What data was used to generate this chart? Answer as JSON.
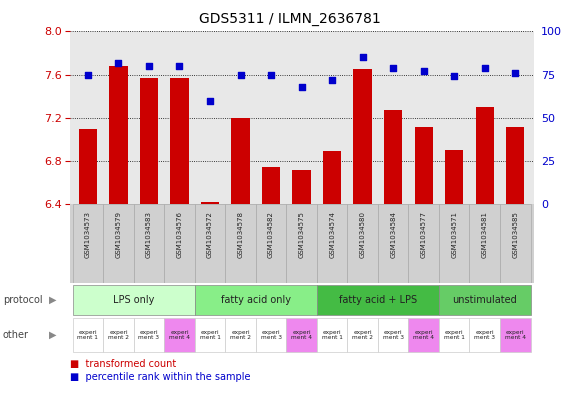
{
  "title": "GDS5311 / ILMN_2636781",
  "samples": [
    "GSM1034573",
    "GSM1034579",
    "GSM1034583",
    "GSM1034576",
    "GSM1034572",
    "GSM1034578",
    "GSM1034582",
    "GSM1034575",
    "GSM1034574",
    "GSM1034580",
    "GSM1034584",
    "GSM1034577",
    "GSM1034571",
    "GSM1034581",
    "GSM1034585"
  ],
  "transformed_count": [
    7.1,
    7.68,
    7.57,
    7.57,
    6.42,
    7.2,
    6.75,
    6.72,
    6.89,
    7.65,
    7.27,
    7.12,
    6.9,
    7.3,
    7.12
  ],
  "percentile_rank": [
    75,
    82,
    80,
    80,
    60,
    75,
    75,
    68,
    72,
    85,
    79,
    77,
    74,
    79,
    76
  ],
  "ylim_left": [
    6.4,
    8.0
  ],
  "ylim_right": [
    0,
    100
  ],
  "yticks_left": [
    6.4,
    6.8,
    7.2,
    7.6,
    8.0
  ],
  "yticks_right": [
    0,
    25,
    50,
    75,
    100
  ],
  "bar_color": "#cc0000",
  "dot_color": "#0000cc",
  "bg_color": "#ffffff",
  "plot_bg": "#e8e8e8",
  "xtick_bg": "#d0d0d0",
  "protocol_groups": [
    {
      "label": "LPS only",
      "start": 0,
      "end": 4,
      "color": "#ccffcc"
    },
    {
      "label": "fatty acid only",
      "start": 4,
      "end": 8,
      "color": "#88ee88"
    },
    {
      "label": "fatty acid + LPS",
      "start": 8,
      "end": 12,
      "color": "#44bb44"
    },
    {
      "label": "unstimulated",
      "start": 12,
      "end": 15,
      "color": "#66cc66"
    }
  ],
  "other_labels": [
    "experi\nment 1",
    "experi\nment 2",
    "experi\nment 3",
    "experi\nment 4",
    "experi\nment 1",
    "experi\nment 2",
    "experi\nment 3",
    "experi\nment 4",
    "experi\nment 1",
    "experi\nment 2",
    "experi\nment 3",
    "experi\nment 4",
    "experi\nment 1",
    "experi\nment 3",
    "experi\nment 4"
  ],
  "other_colors": [
    "#ffffff",
    "#ffffff",
    "#ffffff",
    "#ee88ee",
    "#ffffff",
    "#ffffff",
    "#ffffff",
    "#ee88ee",
    "#ffffff",
    "#ffffff",
    "#ffffff",
    "#ee88ee",
    "#ffffff",
    "#ffffff",
    "#ee88ee"
  ],
  "left_label_color": "#cc0000",
  "right_label_color": "#0000cc"
}
